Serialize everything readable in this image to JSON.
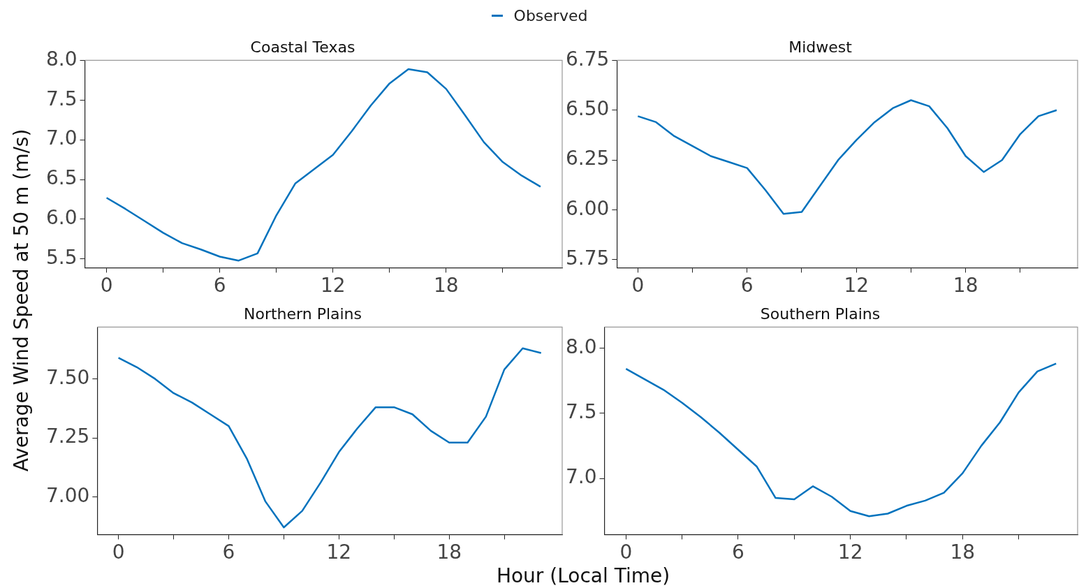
{
  "chart_data": [
    {
      "type": "line",
      "title": "Coastal Texas",
      "ylabel": "Average Wind Speed at 50 m (m/s)",
      "legend": "top",
      "grid": false,
      "line_style": "solid",
      "marker": "none",
      "x": [
        0,
        1,
        2,
        3,
        4,
        5,
        6,
        7,
        8,
        9,
        10,
        11,
        12,
        13,
        14,
        15,
        16,
        17,
        18,
        19,
        20,
        21,
        22,
        23
      ],
      "series": [
        {
          "name": "Observed",
          "color": "#0072bd",
          "values": [
            6.27,
            6.13,
            5.98,
            5.83,
            5.7,
            5.62,
            5.53,
            5.48,
            5.57,
            6.05,
            6.45,
            6.63,
            6.81,
            7.11,
            7.43,
            7.71,
            7.89,
            7.85,
            7.64,
            7.31,
            6.97,
            6.72,
            6.55,
            6.41
          ]
        }
      ],
      "xlim": [
        -1.15,
        24.15
      ],
      "xticks": [
        0,
        {
          "value": 3,
          "label": null
        },
        6,
        {
          "value": 9,
          "label": null
        },
        12,
        {
          "value": 15,
          "label": null
        },
        18,
        {
          "value": 21,
          "label": null
        }
      ],
      "ylim": [
        5.39,
        8.0
      ],
      "yticks": [
        5.5,
        {
          "value": 6,
          "label": "6.0"
        },
        6.5,
        {
          "value": 7,
          "label": "7.0"
        },
        7.5,
        {
          "value": 8,
          "label": "8.0"
        }
      ]
    },
    {
      "type": "line",
      "title": "Midwest",
      "legend": "top",
      "grid": false,
      "line_style": "solid",
      "marker": "none",
      "x": [
        0,
        1,
        2,
        3,
        4,
        5,
        6,
        7,
        8,
        9,
        10,
        11,
        12,
        13,
        14,
        15,
        16,
        17,
        18,
        19,
        20,
        21,
        22,
        23
      ],
      "series": [
        {
          "name": "Observed",
          "color": "#0072bd",
          "values": [
            6.47,
            6.44,
            6.37,
            6.32,
            6.27,
            6.24,
            6.21,
            6.1,
            5.98,
            5.99,
            6.12,
            6.25,
            6.35,
            6.44,
            6.51,
            6.55,
            6.52,
            6.41,
            6.27,
            6.19,
            6.25,
            6.38,
            6.47,
            6.5
          ]
        }
      ],
      "xlim": [
        -1.15,
        24.15
      ],
      "xticks": [
        0,
        {
          "value": 3,
          "label": null
        },
        6,
        {
          "value": 9,
          "label": null
        },
        12,
        {
          "value": 15,
          "label": null
        },
        18,
        {
          "value": 21,
          "label": null
        }
      ],
      "ylim": [
        5.71,
        6.75
      ],
      "yticks": [
        5.75,
        {
          "value": 6,
          "label": "6.00"
        },
        6.25,
        {
          "value": 6.5,
          "label": "6.50"
        },
        6.75
      ]
    },
    {
      "type": "line",
      "title": "Northern Plains",
      "xlabel": "Hour (Local Time)",
      "legend": "top",
      "grid": false,
      "line_style": "solid",
      "marker": "none",
      "x": [
        0,
        1,
        2,
        3,
        4,
        5,
        6,
        7,
        8,
        9,
        10,
        11,
        12,
        13,
        14,
        15,
        16,
        17,
        18,
        19,
        20,
        21,
        22,
        23
      ],
      "series": [
        {
          "name": "Observed",
          "color": "#0072bd",
          "values": [
            7.59,
            7.55,
            7.5,
            7.44,
            7.4,
            7.35,
            7.3,
            7.16,
            6.98,
            6.87,
            6.94,
            7.06,
            7.19,
            7.29,
            7.38,
            7.38,
            7.35,
            7.28,
            7.23,
            7.23,
            7.34,
            7.54,
            7.63,
            7.61
          ]
        }
      ],
      "xlim": [
        -1.15,
        24.15
      ],
      "xticks": [
        0,
        {
          "value": 3,
          "label": null
        },
        6,
        {
          "value": 9,
          "label": null
        },
        12,
        {
          "value": 15,
          "label": null
        },
        18,
        {
          "value": 21,
          "label": null
        }
      ],
      "ylim": [
        6.84,
        7.72
      ],
      "yticks": [
        {
          "value": 7,
          "label": "7.00"
        },
        7.25,
        {
          "value": 7.5,
          "label": "7.50"
        }
      ]
    },
    {
      "type": "line",
      "title": "Southern Plains",
      "legend": "top",
      "grid": false,
      "line_style": "solid",
      "marker": "none",
      "x": [
        0,
        1,
        2,
        3,
        4,
        5,
        6,
        7,
        8,
        9,
        10,
        11,
        12,
        13,
        14,
        15,
        16,
        17,
        18,
        19,
        20,
        21,
        22,
        23
      ],
      "series": [
        {
          "name": "Observed",
          "color": "#0072bd",
          "values": [
            7.84,
            7.76,
            7.68,
            7.58,
            7.47,
            7.35,
            7.22,
            7.09,
            6.85,
            6.84,
            6.94,
            6.86,
            6.75,
            6.71,
            6.73,
            6.79,
            6.83,
            6.89,
            7.04,
            7.25,
            7.43,
            7.66,
            7.82,
            7.88
          ]
        }
      ],
      "xlim": [
        -1.15,
        24.15
      ],
      "xticks": [
        0,
        {
          "value": 3,
          "label": null
        },
        6,
        {
          "value": 9,
          "label": null
        },
        12,
        {
          "value": 15,
          "label": null
        },
        18,
        {
          "value": 21,
          "label": null
        }
      ],
      "ylim": [
        6.57,
        8.16
      ],
      "yticks": [
        {
          "value": 7,
          "label": "7.0"
        },
        7.5,
        {
          "value": 8,
          "label": "8.0"
        }
      ]
    }
  ]
}
